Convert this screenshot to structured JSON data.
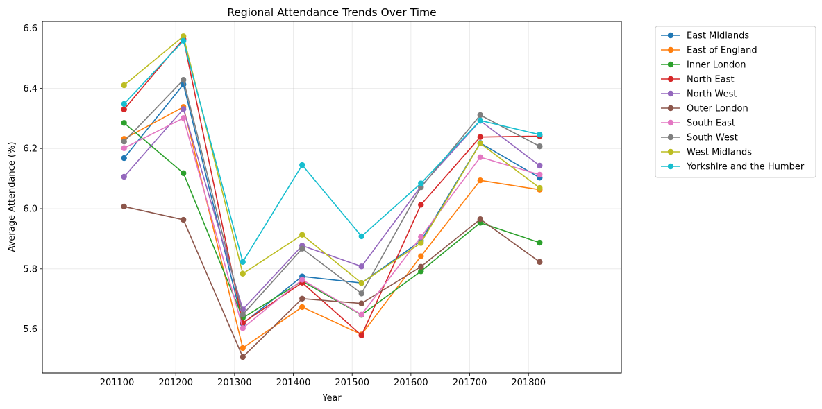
{
  "chart_data": {
    "type": "line",
    "title": "Regional Attendance Trends Over Time",
    "xlabel": "Year",
    "ylabel": "Average Attendance (%)",
    "x": [
      201112,
      201213,
      201314,
      201415,
      201516,
      201617,
      201718,
      201819
    ],
    "xlim": [
      200973,
      201958
    ],
    "ylim": [
      5.454,
      6.622
    ],
    "xticks": [
      201100,
      201200,
      201300,
      201400,
      201500,
      201600,
      201700,
      201800
    ],
    "yticks": [
      5.6,
      5.8,
      6.0,
      6.2,
      6.4,
      6.6
    ],
    "grid": true,
    "legend_position": "outside-upper-right",
    "markers": "circle",
    "series": [
      {
        "name": "East Midlands",
        "color": "#1f77b4",
        "values": [
          6.168,
          6.413,
          5.618,
          5.775,
          5.753,
          5.893,
          6.218,
          6.103
        ]
      },
      {
        "name": "East of England",
        "color": "#ff7f0e",
        "values": [
          6.232,
          6.338,
          5.537,
          5.673,
          5.582,
          5.842,
          6.094,
          6.063
        ]
      },
      {
        "name": "Inner London",
        "color": "#2ca02c",
        "values": [
          6.285,
          6.118,
          5.637,
          5.759,
          5.647,
          5.792,
          5.953,
          5.887
        ]
      },
      {
        "name": "North East",
        "color": "#d62728",
        "values": [
          6.33,
          6.564,
          5.62,
          5.754,
          5.579,
          6.013,
          6.238,
          6.241
        ]
      },
      {
        "name": "North West",
        "color": "#9467bd",
        "values": [
          6.106,
          6.331,
          5.665,
          5.877,
          5.808,
          6.074,
          6.292,
          6.143
        ]
      },
      {
        "name": "Outer London",
        "color": "#8c564b",
        "values": [
          6.007,
          5.963,
          5.507,
          5.701,
          5.685,
          5.807,
          5.965,
          5.823
        ]
      },
      {
        "name": "South East",
        "color": "#e377c2",
        "values": [
          6.201,
          6.301,
          5.603,
          5.764,
          5.648,
          5.906,
          6.171,
          6.113
        ]
      },
      {
        "name": "South West",
        "color": "#7f7f7f",
        "values": [
          6.223,
          6.428,
          5.648,
          5.867,
          5.718,
          6.071,
          6.311,
          6.207
        ]
      },
      {
        "name": "West Midlands",
        "color": "#bcbd22",
        "values": [
          6.41,
          6.573,
          5.784,
          5.913,
          5.753,
          5.886,
          6.217,
          6.069
        ]
      },
      {
        "name": "Yorkshire and the Humber",
        "color": "#17becf",
        "values": [
          6.348,
          6.558,
          5.823,
          6.145,
          5.908,
          6.084,
          6.293,
          6.246
        ]
      }
    ]
  }
}
